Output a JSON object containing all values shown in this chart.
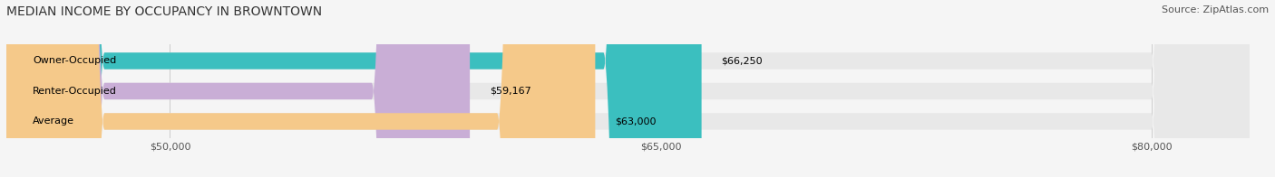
{
  "title": "MEDIAN INCOME BY OCCUPANCY IN BROWNTOWN",
  "source": "Source: ZipAtlas.com",
  "categories": [
    "Owner-Occupied",
    "Renter-Occupied",
    "Average"
  ],
  "values": [
    66250,
    59167,
    63000
  ],
  "bar_colors": [
    "#3bbfbf",
    "#c9aed6",
    "#f5c98a"
  ],
  "bar_bg_color": "#e8e8e8",
  "value_labels": [
    "$66,250",
    "$59,167",
    "$63,000"
  ],
  "xlim_min": 45000,
  "xlim_max": 83000,
  "xticks": [
    50000,
    65000,
    80000
  ],
  "xtick_labels": [
    "$50,000",
    "$65,000",
    "$80,000"
  ],
  "bar_height": 0.55,
  "title_fontsize": 10,
  "label_fontsize": 8,
  "tick_fontsize": 8,
  "source_fontsize": 8,
  "background_color": "#f5f5f5"
}
